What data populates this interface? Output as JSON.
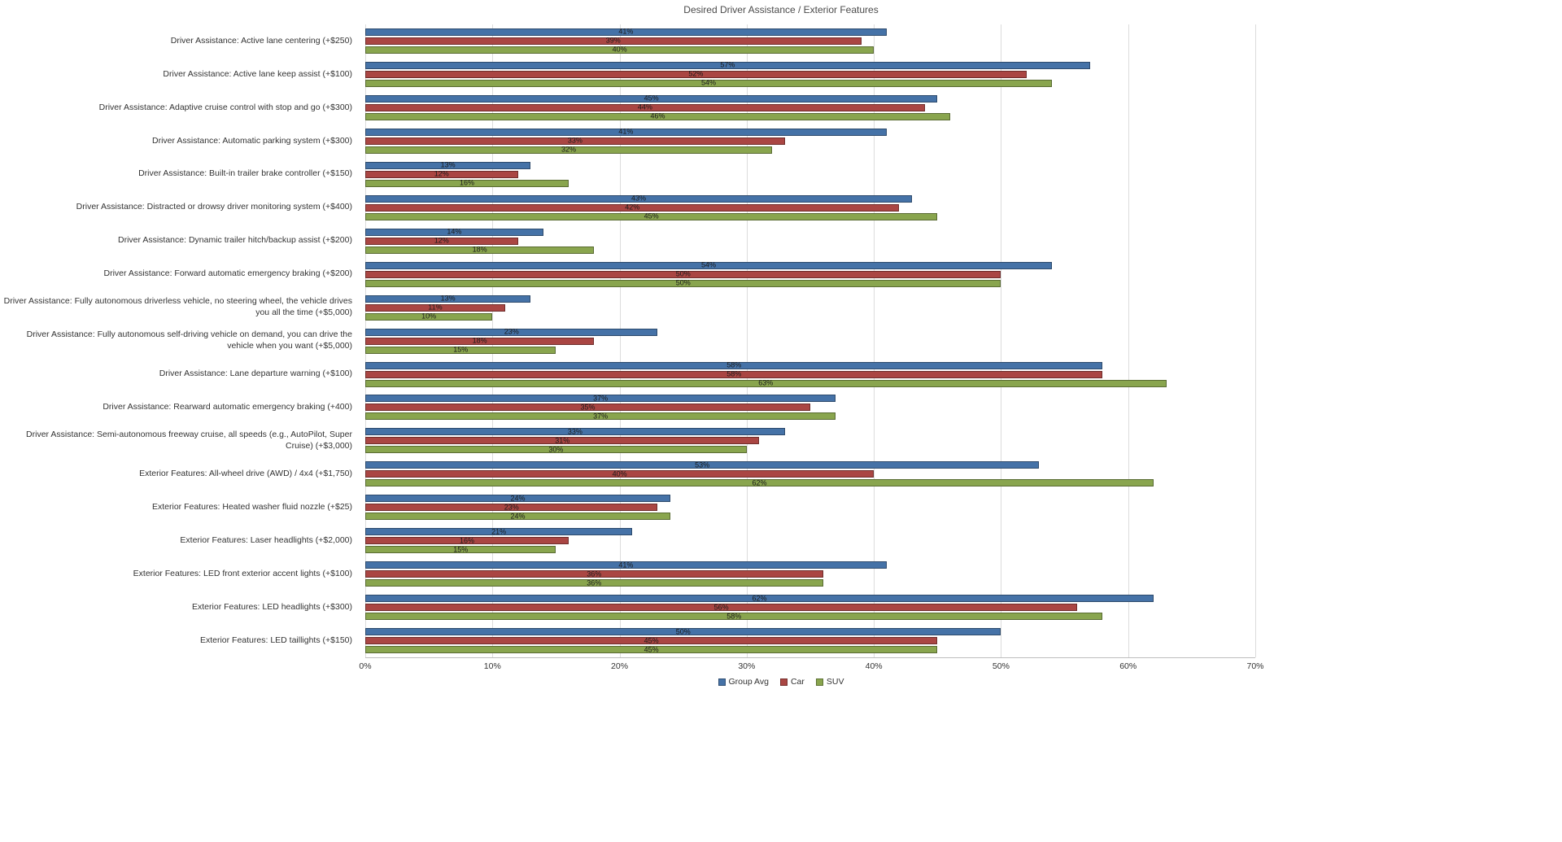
{
  "title": "Desired Driver Assistance / Exterior Features",
  "chart_data": {
    "type": "bar",
    "orientation": "horizontal",
    "title": "Desired Driver Assistance / Exterior Features",
    "xlabel": "",
    "ylabel": "",
    "xlim": [
      0,
      70
    ],
    "grid": true,
    "legend_position": "bottom",
    "axis_ticks": [
      "0%",
      "10%",
      "20%",
      "30%",
      "40%",
      "50%",
      "60%",
      "70%"
    ],
    "categories": [
      "Driver Assistance: Active lane centering (+$250)",
      "Driver Assistance: Active lane keep assist (+$100)",
      "Driver Assistance: Adaptive cruise control with stop and go (+$300)",
      "Driver Assistance: Automatic parking system (+$300)",
      "Driver Assistance: Built-in trailer brake controller (+$150)",
      "Driver Assistance: Distracted or drowsy driver monitoring system (+$400)",
      "Driver Assistance: Dynamic trailer hitch/backup assist (+$200)",
      "Driver Assistance: Forward automatic emergency braking (+$200)",
      "Driver Assistance: Fully autonomous driverless vehicle, no steering wheel, the vehicle drives you all the time (+$5,000)",
      "Driver Assistance: Fully autonomous self-driving vehicle on demand, you can drive the vehicle when you want (+$5,000)",
      "Driver Assistance: Lane departure warning (+$100)",
      "Driver Assistance: Rearward automatic emergency braking (+400)",
      "Driver Assistance: Semi-autonomous freeway cruise, all speeds (e.g., AutoPilot, Super Cruise) (+$3,000)",
      "Exterior Features: All-wheel drive (AWD) / 4x4 (+$1,750)",
      "Exterior Features: Heated washer fluid nozzle (+$25)",
      "Exterior Features: Laser headlights (+$2,000)",
      "Exterior Features: LED front exterior accent lights (+$100)",
      "Exterior Features: LED headlights (+$300)",
      "Exterior Features: LED taillights (+$150)"
    ],
    "series": [
      {
        "name": "Group Avg",
        "color": "#4572A7",
        "values": [
          41,
          57,
          45,
          41,
          13,
          43,
          14,
          54,
          13,
          23,
          58,
          37,
          33,
          53,
          24,
          21,
          41,
          62,
          50
        ]
      },
      {
        "name": "Car",
        "color": "#AA4643",
        "values": [
          39,
          52,
          44,
          33,
          12,
          42,
          12,
          50,
          11,
          18,
          58,
          35,
          31,
          40,
          23,
          16,
          36,
          56,
          45
        ]
      },
      {
        "name": "SUV",
        "color": "#89A54E",
        "values": [
          40,
          54,
          46,
          32,
          16,
          45,
          18,
          50,
          10,
          15,
          63,
          37,
          30,
          62,
          24,
          15,
          36,
          58,
          45
        ]
      }
    ]
  }
}
